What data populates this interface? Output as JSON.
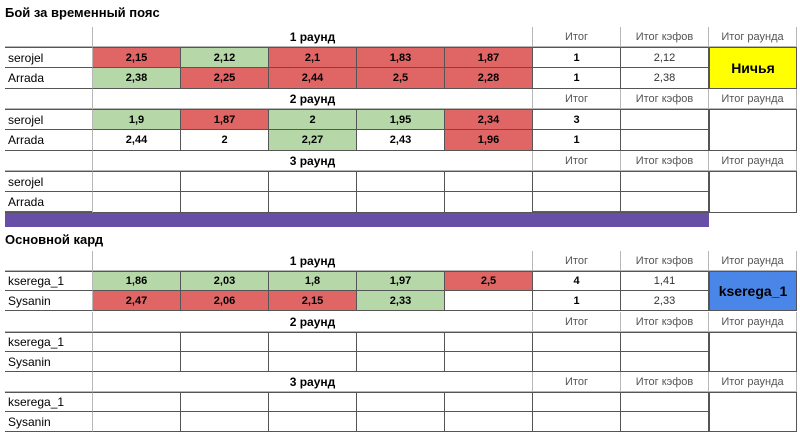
{
  "fights": [
    {
      "title": "Бой за временный пояс",
      "rounds": [
        {
          "label": "1 раунд",
          "total_header": "Итог",
          "coef_header": "Итог кэфов",
          "result_header": "Итог раунда",
          "result": "Ничья",
          "result_color": "#ffff00",
          "players": [
            {
              "name": "serojel",
              "scores": [
                "2,15",
                "2,12",
                "2,1",
                "1,83",
                "1,87"
              ],
              "colors": [
                "#e06666",
                "#b6d7a8",
                "#e06666",
                "#e06666",
                "#e06666"
              ],
              "total": "1",
              "coef": "2,12"
            },
            {
              "name": "Arrada",
              "scores": [
                "2,38",
                "2,25",
                "2,44",
                "2,5",
                "2,28"
              ],
              "colors": [
                "#b6d7a8",
                "#e06666",
                "#e06666",
                "#e06666",
                "#e06666"
              ],
              "total": "1",
              "coef": "2,38"
            }
          ]
        },
        {
          "label": "2 раунд",
          "total_header": "Итог",
          "coef_header": "Итог кэфов",
          "result_header": "Итог раунда",
          "players": [
            {
              "name": "serojel",
              "scores": [
                "1,9",
                "1,87",
                "2",
                "1,95",
                "2,34"
              ],
              "colors": [
                "#b6d7a8",
                "#e06666",
                "#b6d7a8",
                "#b6d7a8",
                "#e06666"
              ],
              "total": "3"
            },
            {
              "name": "Arrada",
              "scores": [
                "2,44",
                "2",
                "2,27",
                "2,43",
                "1,96"
              ],
              "colors": [
                "#ffffff",
                "#ffffff",
                "#b6d7a8",
                "#ffffff",
                "#e06666"
              ],
              "total": "1"
            }
          ]
        },
        {
          "label": "3 раунд",
          "total_header": "Итог",
          "coef_header": "Итог кэфов",
          "result_header": "Итог раунда",
          "players": [
            {
              "name": "serojel"
            },
            {
              "name": "Arrada"
            }
          ]
        }
      ]
    },
    {
      "title": "Основной кард",
      "rounds": [
        {
          "label": "1 раунд",
          "total_header": "Итог",
          "coef_header": "Итог кэфов",
          "result_header": "Итог раунда",
          "result": "kserega_1",
          "result_color": "#4a86e8",
          "players": [
            {
              "name": "kserega_1",
              "scores": [
                "1,86",
                "2,03",
                "1,8",
                "1,97",
                "2,5"
              ],
              "colors": [
                "#b6d7a8",
                "#b6d7a8",
                "#b6d7a8",
                "#b6d7a8",
                "#e06666"
              ],
              "total": "4",
              "coef": "1,41"
            },
            {
              "name": "Sysanin",
              "scores": [
                "2,47",
                "2,06",
                "2,15",
                "2,33"
              ],
              "colors": [
                "#e06666",
                "#e06666",
                "#e06666",
                "#b6d7a8"
              ],
              "total": "1",
              "coef": "2,33"
            }
          ]
        },
        {
          "label": "2 раунд",
          "total_header": "Итог",
          "coef_header": "Итог кэфов",
          "result_header": "Итог раунда",
          "players": [
            {
              "name": "kserega_1"
            },
            {
              "name": "Sysanin"
            }
          ]
        },
        {
          "label": "3 раунд",
          "total_header": "Итог",
          "coef_header": "Итог кэфов",
          "result_header": "Итог раунда",
          "players": [
            {
              "name": "kserega_1"
            },
            {
              "name": "Sysanin"
            }
          ]
        }
      ]
    }
  ]
}
